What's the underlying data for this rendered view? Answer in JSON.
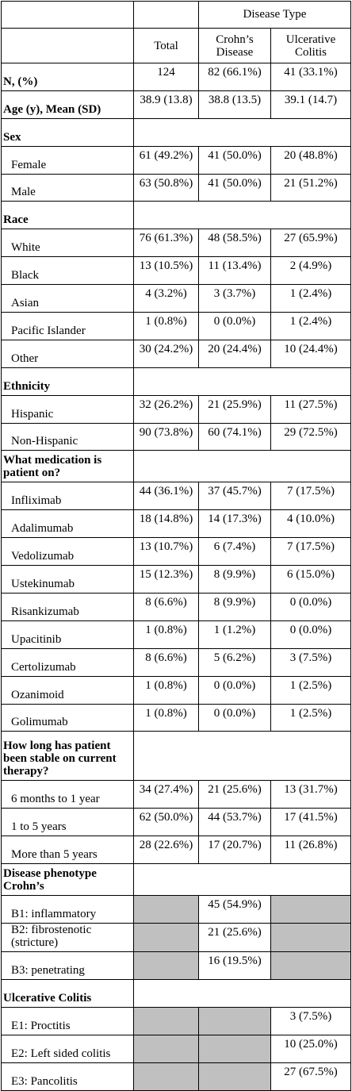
{
  "table": {
    "header": {
      "group": "Disease Type",
      "columns": [
        "Total",
        "Crohn’s Disease",
        "Ulcerative Colitis"
      ]
    },
    "rows": [
      {
        "label": "N, (%)",
        "bold": true,
        "values": [
          "124",
          "82 (66.1%)",
          "41 (33.1%)"
        ]
      },
      {
        "label": "Age (y), Mean (SD)",
        "bold": true,
        "values": [
          "38.9 (13.8)",
          "38.8 (13.5)",
          "39.1 (14.7)"
        ]
      },
      {
        "label": "Sex",
        "section": true
      },
      {
        "label": "Female",
        "values": [
          "61 (49.2%)",
          "41 (50.0%)",
          "20 (48.8%)"
        ]
      },
      {
        "label": "Male",
        "values": [
          "63 (50.8%)",
          "41 (50.0%)",
          "21 (51.2%)"
        ]
      },
      {
        "label": "Race",
        "section": true
      },
      {
        "label": "White",
        "values": [
          "76 (61.3%)",
          "48 (58.5%)",
          "27 (65.9%)"
        ]
      },
      {
        "label": "Black",
        "values": [
          "13 (10.5%)",
          "11 (13.4%)",
          "2 (4.9%)"
        ]
      },
      {
        "label": "Asian",
        "values": [
          "4 (3.2%)",
          "3 (3.7%)",
          "1 (2.4%)"
        ]
      },
      {
        "label": "Pacific Islander",
        "values": [
          "1 (0.8%)",
          "0 (0.0%)",
          "1 (2.4%)"
        ]
      },
      {
        "label": "Other",
        "values": [
          "30 (24.2%)",
          "20 (24.4%)",
          "10 (24.4%)"
        ]
      },
      {
        "label": "Ethnicity",
        "section": true
      },
      {
        "label": "Hispanic",
        "values": [
          "32 (26.2%)",
          "21 (25.9%)",
          "11 (27.5%)"
        ]
      },
      {
        "label": "Non-Hispanic",
        "values": [
          "90 (73.8%)",
          "60 (74.1%)",
          "29 (72.5%)"
        ]
      },
      {
        "label": "What medication is patient on?",
        "section": true
      },
      {
        "label": "Infliximab",
        "values": [
          "44 (36.1%)",
          "37 (45.7%)",
          "7 (17.5%)"
        ]
      },
      {
        "label": "Adalimumab",
        "values": [
          "18 (14.8%)",
          "14 (17.3%)",
          "4 (10.0%)"
        ]
      },
      {
        "label": "Vedolizumab",
        "values": [
          "13 (10.7%)",
          "6 (7.4%)",
          "7 (17.5%)"
        ]
      },
      {
        "label": "Ustekinumab",
        "values": [
          "15 (12.3%)",
          "8 (9.9%)",
          "6 (15.0%)"
        ]
      },
      {
        "label": "Risankizumab",
        "values": [
          "8 (6.6%)",
          "8 (9.9%)",
          "0 (0.0%)"
        ]
      },
      {
        "label": "Upacitinib",
        "values": [
          "1 (0.8%)",
          "1 (1.2%)",
          "0 (0.0%)"
        ]
      },
      {
        "label": "Certolizumab",
        "values": [
          "8 (6.6%)",
          "5 (6.2%)",
          "3 (7.5%)"
        ]
      },
      {
        "label": "Ozanimoid",
        "values": [
          "1 (0.8%)",
          "0 (0.0%)",
          "1 (2.5%)"
        ]
      },
      {
        "label": "Golimumab",
        "values": [
          "1 (0.8%)",
          "0 (0.0%)",
          "1 (2.5%)"
        ]
      },
      {
        "label": "How long has patient been stable on current therapy?",
        "section": true
      },
      {
        "label": "6 months to 1 year",
        "values": [
          "34 (27.4%)",
          "21 (25.6%)",
          "13 (31.7%)"
        ]
      },
      {
        "label": "1 to 5 years",
        "values": [
          "62 (50.0%)",
          "44 (53.7%)",
          "17 (41.5%)"
        ]
      },
      {
        "label": "More than 5 years",
        "values": [
          "28 (22.6%)",
          "17 (20.7%)",
          "11 (26.8%)"
        ]
      },
      {
        "label": "Disease phenotype Crohn’s",
        "section": true
      },
      {
        "label": "B1: inflammatory",
        "values": [
          null,
          "45 (54.9%)",
          null
        ]
      },
      {
        "label": "B2: fibrostenotic (stricture)",
        "values": [
          null,
          "21 (25.6%)",
          null
        ]
      },
      {
        "label": "B3: penetrating",
        "values": [
          null,
          "16 (19.5%)",
          null
        ]
      },
      {
        "label": "Ulcerative Colitis",
        "section": true
      },
      {
        "label": "E1: Proctitis",
        "values": [
          null,
          null,
          "3 (7.5%)"
        ]
      },
      {
        "label": "E2: Left sided colitis",
        "values": [
          null,
          null,
          "10 (25.0%)"
        ]
      },
      {
        "label": "E3: Pancolitis",
        "values": [
          null,
          null,
          "27 (67.5%)"
        ]
      }
    ]
  }
}
